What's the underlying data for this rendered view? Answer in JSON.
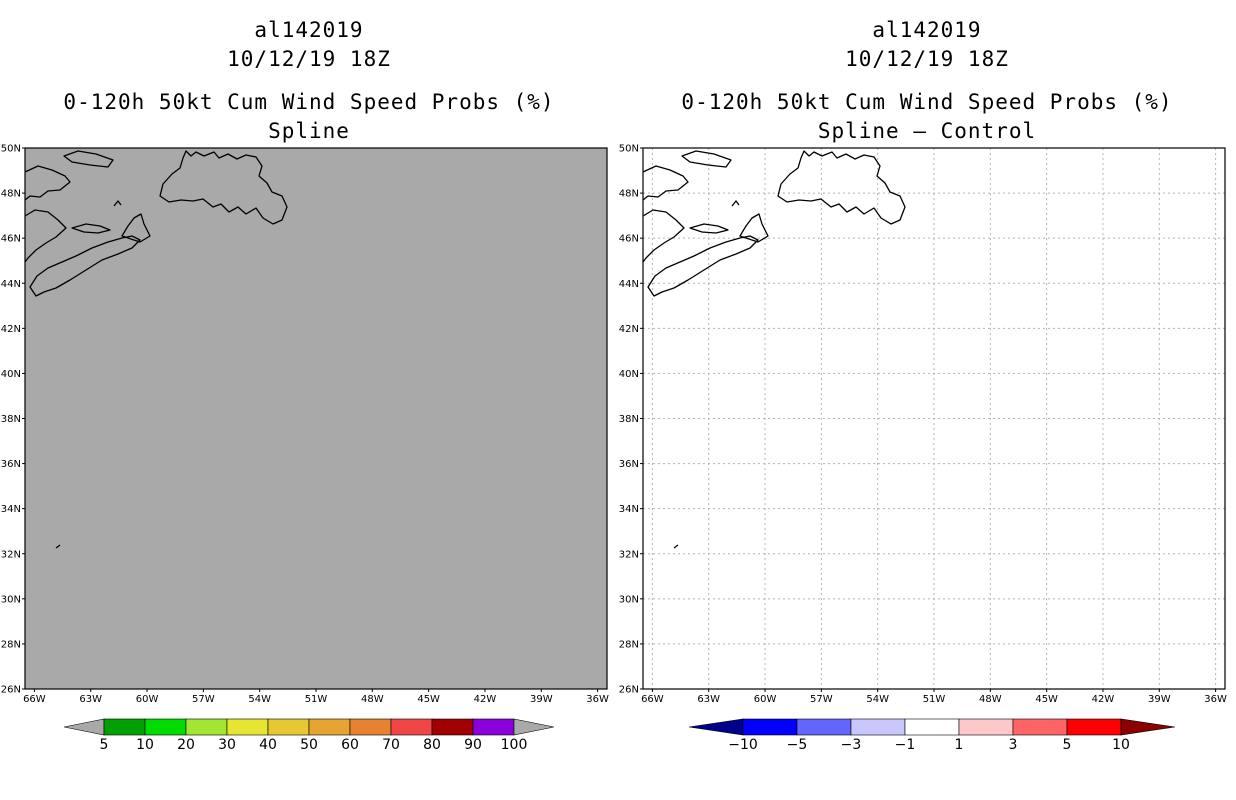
{
  "panels": [
    {
      "id": "left",
      "title_storm": "al142019",
      "title_date": "10/12/19 18Z",
      "title_product": "0-120h 50kt Cum Wind Speed Probs (%)",
      "title_method": "Spline",
      "map_fill": "#a9a9a9",
      "gridlines": false,
      "lat_labels": [
        "50N",
        "48N",
        "46N",
        "44N",
        "42N",
        "40N",
        "38N",
        "36N",
        "34N",
        "32N",
        "30N",
        "28N",
        "26N"
      ],
      "lon_labels": [
        "66W",
        "63W",
        "60W",
        "57W",
        "54W",
        "51W",
        "48W",
        "45W",
        "42W",
        "39W",
        "36W"
      ],
      "colorbar": {
        "colors": [
          "#a9a9a9",
          "#00a000",
          "#00dc00",
          "#a0e632",
          "#e6e632",
          "#e6c832",
          "#e6a532",
          "#e68232",
          "#f04646",
          "#a00000",
          "#8c00dc",
          "#a9a9a9"
        ],
        "labels": [
          "5",
          "10",
          "20",
          "30",
          "40",
          "50",
          "60",
          "70",
          "80",
          "90",
          "100"
        ]
      }
    },
    {
      "id": "right",
      "title_storm": "al142019",
      "title_date": "10/12/19 18Z",
      "title_product": "0-120h 50kt Cum Wind Speed Probs (%)",
      "title_method": "Spline – Control",
      "map_fill": "#ffffff",
      "gridlines": true,
      "lat_labels": [
        "50N",
        "48N",
        "46N",
        "44N",
        "42N",
        "40N",
        "38N",
        "36N",
        "34N",
        "32N",
        "30N",
        "28N",
        "26N"
      ],
      "lon_labels": [
        "66W",
        "63W",
        "60W",
        "57W",
        "54W",
        "51W",
        "48W",
        "45W",
        "42W",
        "39W",
        "36W"
      ],
      "colorbar": {
        "colors": [
          "#00008b",
          "#0000ff",
          "#6464ff",
          "#c8c8ff",
          "#ffffff",
          "#ffc8c8",
          "#ff6464",
          "#ff0000",
          "#8b0000"
        ],
        "labels": [
          "−10",
          "−5",
          "−3",
          "−1",
          "1",
          "3",
          "5",
          "10"
        ]
      }
    }
  ]
}
